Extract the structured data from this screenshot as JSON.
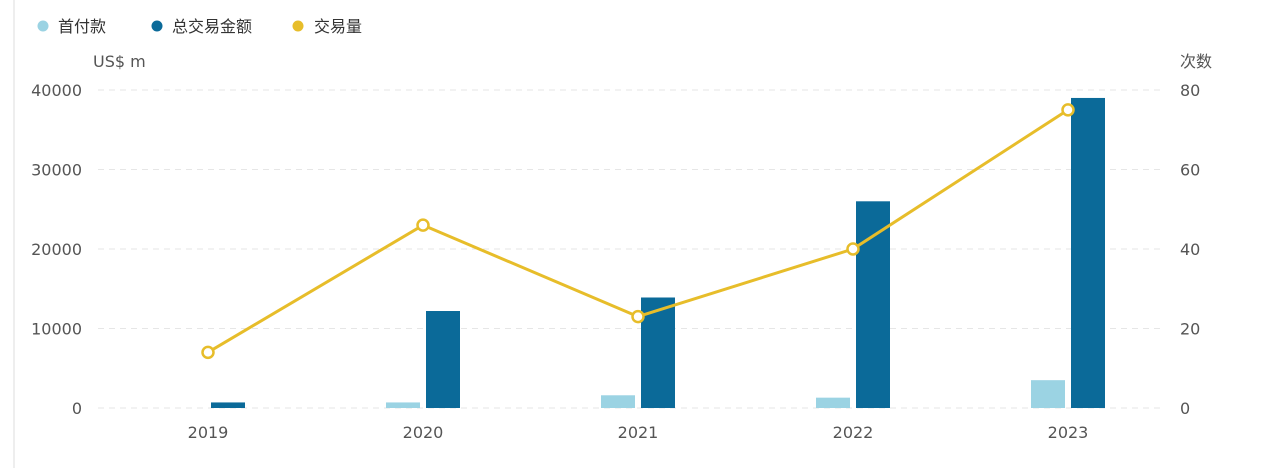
{
  "legend": [
    {
      "label": "首付款",
      "color": "#9bd3e3"
    },
    {
      "label": "总交易金额",
      "color": "#0b6a99"
    },
    {
      "label": "交易量",
      "color": "#e7bd2a"
    }
  ],
  "axis": {
    "left_unit": "US$ m",
    "right_unit": "次数",
    "left_ticks": [
      "0",
      "10000",
      "20000",
      "30000",
      "40000"
    ],
    "right_ticks": [
      "0",
      "20",
      "40",
      "60",
      "80"
    ]
  },
  "chart_data": {
    "type": "bar",
    "categories": [
      "2019",
      "2020",
      "2021",
      "2022",
      "2023"
    ],
    "series": [
      {
        "name": "首付款",
        "type": "bar",
        "axis": "left",
        "color": "#9bd3e3",
        "values": [
          0,
          700,
          1600,
          1300,
          3500
        ]
      },
      {
        "name": "总交易金额",
        "type": "bar",
        "axis": "left",
        "color": "#0b6a99",
        "values": [
          700,
          12200,
          13900,
          26000,
          39000
        ]
      },
      {
        "name": "交易量",
        "type": "line",
        "axis": "right",
        "color": "#e7bd2a",
        "values": [
          14,
          46,
          23,
          40,
          75
        ]
      }
    ],
    "ylabel": "US$ m",
    "ylim": [
      0,
      40000
    ],
    "y2label": "次数",
    "y2lim": [
      0,
      80
    ],
    "grid": true,
    "legend_position": "top-left"
  }
}
